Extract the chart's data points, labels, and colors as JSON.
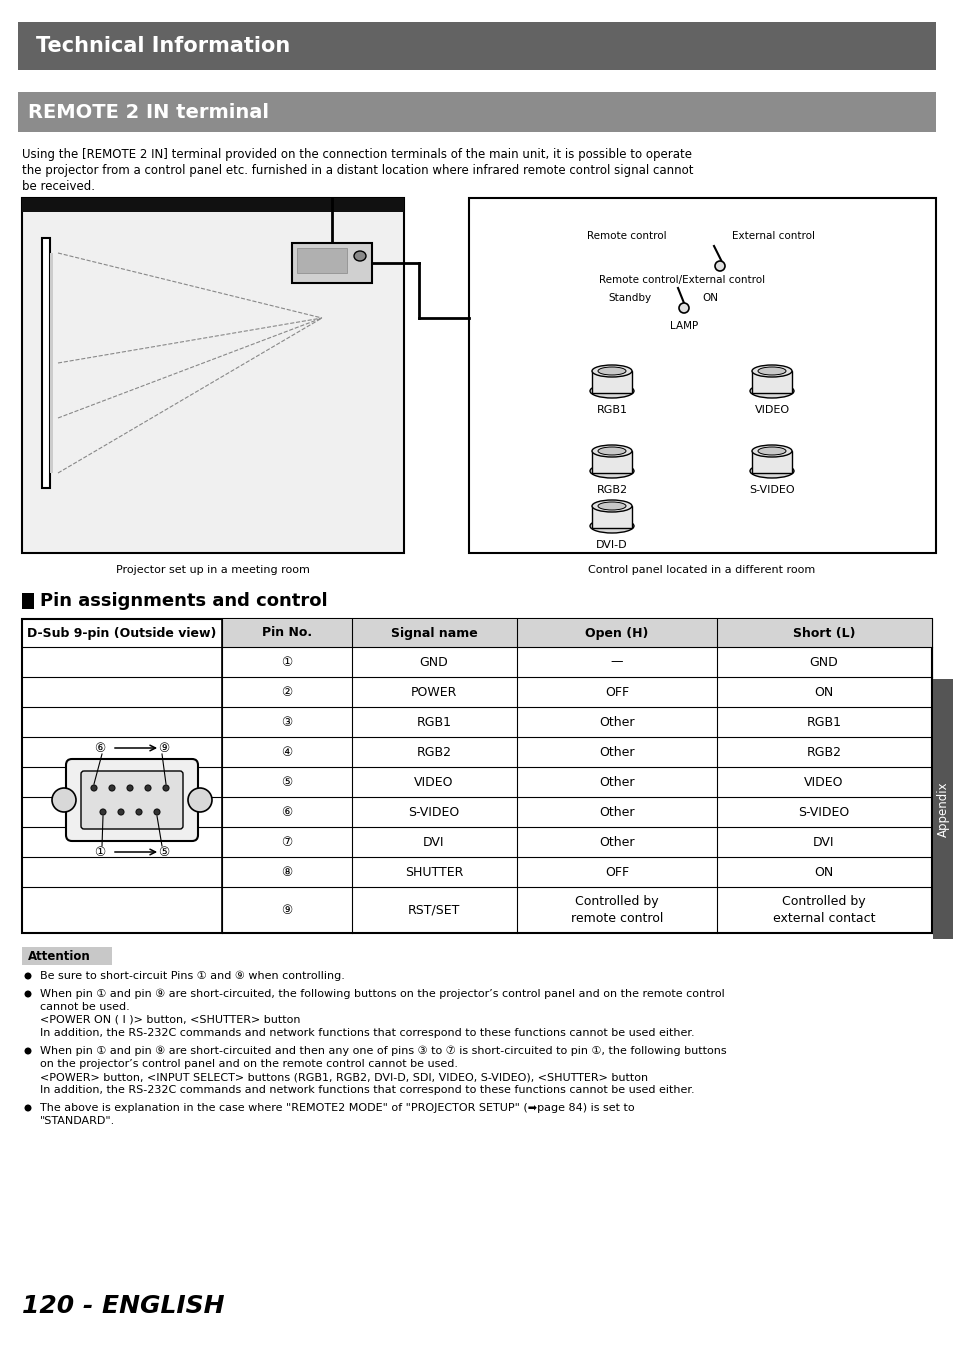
{
  "page_bg": "#ffffff",
  "header_bg": "#636363",
  "header_text": "Technical Information",
  "header_text_color": "#ffffff",
  "subheader_bg": "#8c8c8c",
  "subheader_text": "REMOTE 2 IN terminal",
  "subheader_text_color": "#ffffff",
  "intro_line1": "Using the [REMOTE 2 IN] terminal provided on the connection terminals of the main unit, it is possible to operate",
  "intro_line2": "the projector from a control panel etc. furnished in a distant location where infrared remote control signal cannot",
  "intro_line3": "be received.",
  "caption_left": "Projector set up in a meeting room",
  "caption_right": "Control panel located in a different room",
  "section_title": "Pin assignments and control",
  "table_header": [
    "Pin No.",
    "Signal name",
    "Open (H)",
    "Short (L)"
  ],
  "table_header_bg": "#d4d4d4",
  "dsub_label": "D-Sub 9-pin (Outside view)",
  "table_rows": [
    [
      "①",
      "GND",
      "—",
      "GND"
    ],
    [
      "②",
      "POWER",
      "OFF",
      "ON"
    ],
    [
      "③",
      "RGB1",
      "Other",
      "RGB1"
    ],
    [
      "④",
      "RGB2",
      "Other",
      "RGB2"
    ],
    [
      "⑤",
      "VIDEO",
      "Other",
      "VIDEO"
    ],
    [
      "⑥",
      "S-VIDEO",
      "Other",
      "S-VIDEO"
    ],
    [
      "⑦",
      "DVI",
      "Other",
      "DVI"
    ],
    [
      "⑧",
      "SHUTTER",
      "OFF",
      "ON"
    ],
    [
      "⑨",
      "RST/SET",
      "Controlled by\nremote control",
      "Controlled by\nexternal contact"
    ]
  ],
  "attention_bg": "#c8c8c8",
  "attention_text": "Attention",
  "bullet_items": [
    [
      "Be sure to short-circuit Pins ① and ⑨ when controlling."
    ],
    [
      "When pin ① and pin ⑨ are short-circuited, the following buttons on the projector’s control panel and on the remote control",
      "cannot be used.",
      "<POWER ON ( I )> button, <SHUTTER> button",
      "In addition, the RS-232C commands and network functions that correspond to these functions cannot be used either."
    ],
    [
      "When pin ① and pin ⑨ are short-circuited and then any one of pins ③ to ⑦ is short-circuited to pin ①, the following buttons",
      "on the projector’s control panel and on the remote control cannot be used.",
      "<POWER> button, <INPUT SELECT> buttons (RGB1, RGB2, DVI-D, SDI, VIDEO, S-VIDEO), <SHUTTER> button",
      "In addition, the RS-232C commands and network functions that correspond to these functions cannot be used either."
    ],
    [
      "The above is explanation in the case where \"REMOTE2 MODE\" of \"PROJECTOR SETUP\" (➡page 84) is set to",
      "\"STANDARD\"."
    ]
  ],
  "appendix_label": "Appendix",
  "page_number": "120 - ENGLISH",
  "sidebar_bg": "#555555",
  "sidebar_text_color": "#ffffff"
}
